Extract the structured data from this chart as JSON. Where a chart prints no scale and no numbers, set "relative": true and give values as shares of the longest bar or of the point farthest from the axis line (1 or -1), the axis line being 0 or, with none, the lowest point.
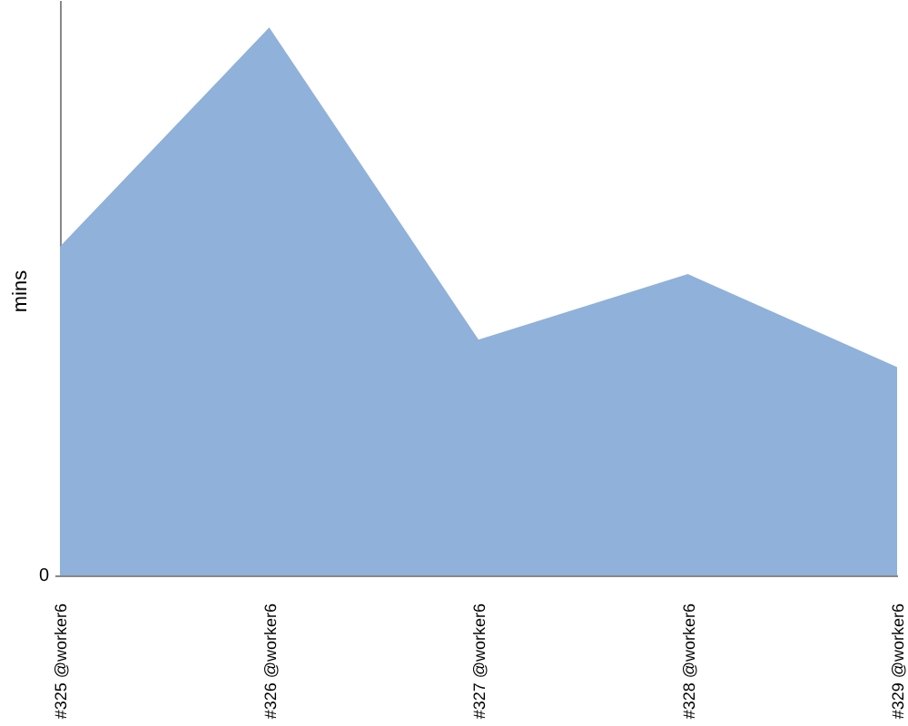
{
  "chart_data": {
    "type": "area",
    "ylabel": "mins",
    "categories": [
      "#325 @worker6",
      "#326 @worker6",
      "#327 @worker6",
      "#328 @worker6",
      "#329 @worker6"
    ],
    "values": [
      0.6,
      1,
      0.43,
      0.55,
      0.38
    ],
    "color": "#8fb1da",
    "relative": true,
    "annotations": [
      "0"
    ]
  }
}
